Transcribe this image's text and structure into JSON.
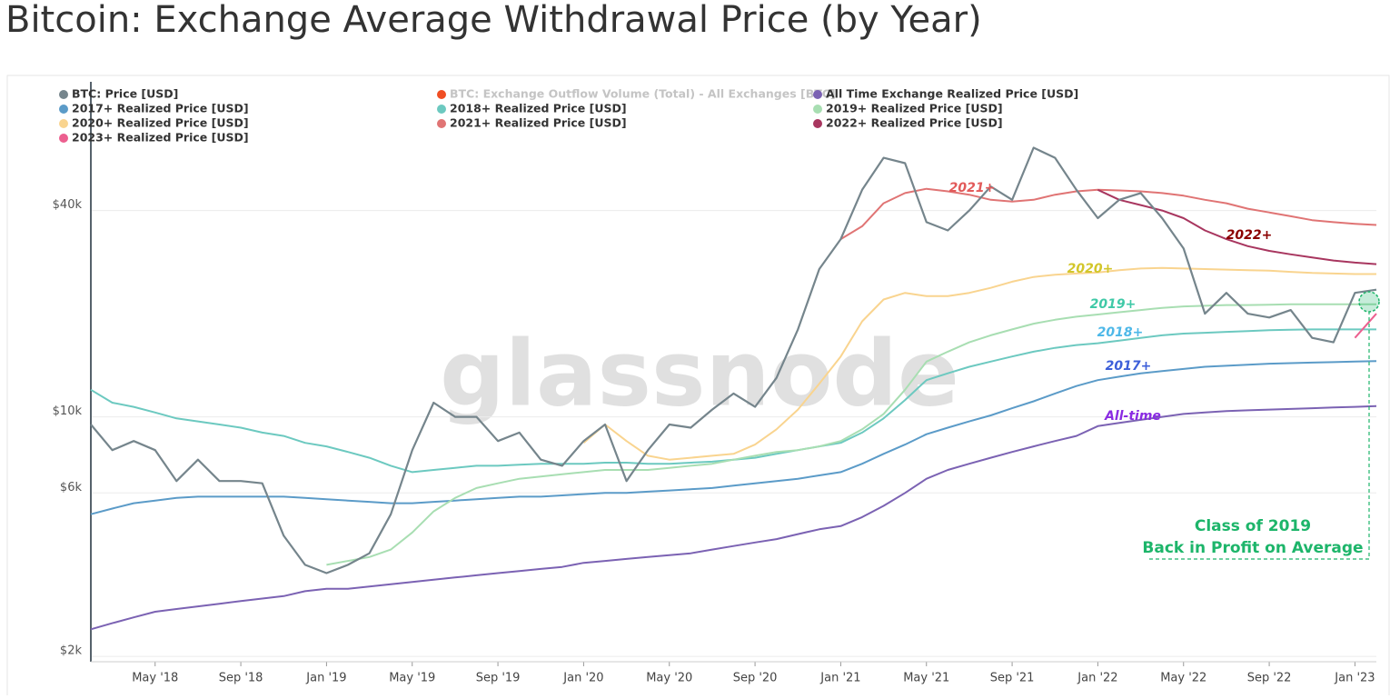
{
  "chart_data": {
    "type": "line",
    "title": "Bitcoin: Exchange Average Withdrawal Price (by Year)",
    "watermark": "glassnode",
    "log_scale": true,
    "grid": true,
    "legend": "top-left",
    "x": [
      "2018-02",
      "2018-03",
      "2018-04",
      "2018-05",
      "2018-06",
      "2018-07",
      "2018-08",
      "2018-09",
      "2018-10",
      "2018-11",
      "2018-12",
      "2019-01",
      "2019-02",
      "2019-03",
      "2019-04",
      "2019-05",
      "2019-06",
      "2019-07",
      "2019-08",
      "2019-09",
      "2019-10",
      "2019-11",
      "2019-12",
      "2020-01",
      "2020-02",
      "2020-03",
      "2020-04",
      "2020-05",
      "2020-06",
      "2020-07",
      "2020-08",
      "2020-09",
      "2020-10",
      "2020-11",
      "2020-12",
      "2021-01",
      "2021-02",
      "2021-03",
      "2021-04",
      "2021-05",
      "2021-06",
      "2021-07",
      "2021-08",
      "2021-09",
      "2021-10",
      "2021-11",
      "2021-12",
      "2022-01",
      "2022-02",
      "2022-03",
      "2022-04",
      "2022-05",
      "2022-06",
      "2022-07",
      "2022-08",
      "2022-09",
      "2022-10",
      "2022-11",
      "2022-12",
      "2023-01",
      "2023-02"
    ],
    "xlim": [
      "2018-02",
      "2023-02"
    ],
    "xticks": [
      {
        "value": "2018-05",
        "label": "May '18"
      },
      {
        "value": "2018-09",
        "label": "Sep '18"
      },
      {
        "value": "2019-01",
        "label": "Jan '19"
      },
      {
        "value": "2019-05",
        "label": "May '19"
      },
      {
        "value": "2019-09",
        "label": "Sep '19"
      },
      {
        "value": "2020-01",
        "label": "Jan '20"
      },
      {
        "value": "2020-05",
        "label": "May '20"
      },
      {
        "value": "2020-09",
        "label": "Sep '20"
      },
      {
        "value": "2021-01",
        "label": "Jan '21"
      },
      {
        "value": "2021-05",
        "label": "May '21"
      },
      {
        "value": "2021-09",
        "label": "Sep '21"
      },
      {
        "value": "2022-01",
        "label": "Jan '22"
      },
      {
        "value": "2022-05",
        "label": "May '22"
      },
      {
        "value": "2022-09",
        "label": "Sep '22"
      },
      {
        "value": "2023-01",
        "label": "Jan '23"
      }
    ],
    "ylim": [
      1930,
      95000
    ],
    "yticks": [
      {
        "value": 2000,
        "label": "$2k"
      },
      {
        "value": 6000,
        "label": "$6k"
      },
      {
        "value": 10000,
        "label": "$10k"
      },
      {
        "value": 40000,
        "label": "$40k"
      }
    ],
    "series": [
      {
        "name": "BTC: Price [USD]",
        "color": "#75858c",
        "values": [
          9500,
          8000,
          8500,
          8000,
          6500,
          7500,
          6500,
          6500,
          6400,
          4500,
          3700,
          3500,
          3700,
          4000,
          5200,
          8000,
          11000,
          10000,
          10000,
          8500,
          9000,
          7500,
          7200,
          8500,
          9500,
          6500,
          8000,
          9500,
          9300,
          10500,
          11700,
          10700,
          13000,
          18000,
          27000,
          33000,
          46000,
          57000,
          55000,
          37000,
          35000,
          40000,
          47000,
          43000,
          61000,
          57000,
          46000,
          38000,
          43000,
          45000,
          38000,
          31000,
          20000,
          23000,
          20000,
          19500,
          20500,
          17000,
          16500,
          23000,
          23500
        ]
      },
      {
        "name": "BTC: Exchange Outflow Volume (Total) - All Exchanges [BTC]",
        "color": "#f04e23",
        "visible": false
      },
      {
        "name": "All Time Exchange Realized Price [USD]",
        "color": "#7b62b3",
        "values": [
          2400,
          2500,
          2600,
          2700,
          2750,
          2800,
          2850,
          2900,
          2950,
          3000,
          3100,
          3150,
          3150,
          3200,
          3250,
          3300,
          3350,
          3400,
          3450,
          3500,
          3550,
          3600,
          3650,
          3750,
          3800,
          3850,
          3900,
          3950,
          4000,
          4100,
          4200,
          4300,
          4400,
          4550,
          4700,
          4800,
          5100,
          5500,
          6000,
          6600,
          7000,
          7300,
          7600,
          7900,
          8200,
          8500,
          8800,
          9400,
          9600,
          9800,
          10000,
          10200,
          10300,
          10400,
          10450,
          10500,
          10550,
          10600,
          10650,
          10700,
          10750
        ]
      },
      {
        "name": "2017+ Realized Price [USD]",
        "color": "#5b9bc8",
        "values": [
          5200,
          5400,
          5600,
          5700,
          5800,
          5850,
          5850,
          5850,
          5850,
          5850,
          5800,
          5750,
          5700,
          5650,
          5600,
          5600,
          5650,
          5700,
          5750,
          5800,
          5850,
          5850,
          5900,
          5950,
          6000,
          6000,
          6050,
          6100,
          6150,
          6200,
          6300,
          6400,
          6500,
          6600,
          6750,
          6900,
          7300,
          7800,
          8300,
          8900,
          9300,
          9700,
          10100,
          10600,
          11100,
          11700,
          12300,
          12800,
          13100,
          13400,
          13600,
          13800,
          14000,
          14100,
          14200,
          14300,
          14350,
          14400,
          14450,
          14500,
          14550
        ]
      },
      {
        "name": "2018+ Realized Price [USD]",
        "color": "#6cc9c0",
        "values": [
          12000,
          11000,
          10700,
          10300,
          9900,
          9700,
          9500,
          9300,
          9000,
          8800,
          8400,
          8200,
          7900,
          7600,
          7200,
          6900,
          7000,
          7100,
          7200,
          7200,
          7250,
          7300,
          7300,
          7300,
          7350,
          7350,
          7300,
          7300,
          7350,
          7400,
          7500,
          7600,
          7800,
          8000,
          8200,
          8400,
          9000,
          9900,
          11200,
          12800,
          13400,
          14000,
          14500,
          15000,
          15500,
          15900,
          16200,
          16400,
          16700,
          17000,
          17300,
          17500,
          17600,
          17700,
          17800,
          17900,
          17950,
          18000,
          18000,
          18000,
          18000
        ]
      },
      {
        "name": "2019+ Realized Price [USD]",
        "color": "#a8deb2",
        "values": [
          null,
          null,
          null,
          null,
          null,
          null,
          null,
          null,
          null,
          null,
          null,
          3700,
          3800,
          3900,
          4100,
          4600,
          5300,
          5800,
          6200,
          6400,
          6600,
          6700,
          6800,
          6900,
          7000,
          7000,
          7000,
          7100,
          7200,
          7300,
          7500,
          7700,
          7900,
          8000,
          8200,
          8500,
          9200,
          10200,
          12000,
          14500,
          15500,
          16500,
          17300,
          18000,
          18700,
          19200,
          19600,
          19900,
          20200,
          20500,
          20800,
          21000,
          21100,
          21200,
          21200,
          21250,
          21300,
          21300,
          21300,
          21300,
          21300
        ]
      },
      {
        "name": "2020+ Realized Price [USD]",
        "color": "#f9d48f",
        "values": [
          null,
          null,
          null,
          null,
          null,
          null,
          null,
          null,
          null,
          null,
          null,
          null,
          null,
          null,
          null,
          null,
          null,
          null,
          null,
          null,
          null,
          null,
          null,
          8400,
          9500,
          8500,
          7700,
          7500,
          7600,
          7700,
          7800,
          8300,
          9200,
          10500,
          12500,
          15000,
          19000,
          22000,
          23000,
          22500,
          22500,
          23000,
          23800,
          24800,
          25600,
          26000,
          26200,
          26400,
          26800,
          27100,
          27200,
          27100,
          27000,
          26900,
          26800,
          26700,
          26500,
          26300,
          26200,
          26100,
          26100
        ]
      },
      {
        "name": "2021+ Realized Price [USD]",
        "color": "#e07474",
        "values": [
          null,
          null,
          null,
          null,
          null,
          null,
          null,
          null,
          null,
          null,
          null,
          null,
          null,
          null,
          null,
          null,
          null,
          null,
          null,
          null,
          null,
          null,
          null,
          null,
          null,
          null,
          null,
          null,
          null,
          null,
          null,
          null,
          null,
          null,
          null,
          33000,
          36000,
          42000,
          45000,
          46300,
          45500,
          44500,
          43000,
          42500,
          43000,
          44500,
          45500,
          46000,
          45800,
          45500,
          45000,
          44200,
          43000,
          42000,
          40500,
          39500,
          38500,
          37500,
          37000,
          36600,
          36300
        ]
      },
      {
        "name": "2022+ Realized Price [USD]",
        "color": "#a8365f",
        "values": [
          null,
          null,
          null,
          null,
          null,
          null,
          null,
          null,
          null,
          null,
          null,
          null,
          null,
          null,
          null,
          null,
          null,
          null,
          null,
          null,
          null,
          null,
          null,
          null,
          null,
          null,
          null,
          null,
          null,
          null,
          null,
          null,
          null,
          null,
          null,
          null,
          null,
          null,
          null,
          null,
          null,
          null,
          null,
          null,
          null,
          null,
          null,
          46000,
          43000,
          41500,
          40000,
          38000,
          35000,
          33000,
          31500,
          30500,
          29800,
          29200,
          28600,
          28200,
          27900
        ]
      },
      {
        "name": "2023+ Realized Price [USD]",
        "color": "#ec5f8f",
        "values": [
          null,
          null,
          null,
          null,
          null,
          null,
          null,
          null,
          null,
          null,
          null,
          null,
          null,
          null,
          null,
          null,
          null,
          null,
          null,
          null,
          null,
          null,
          null,
          null,
          null,
          null,
          null,
          null,
          null,
          null,
          null,
          null,
          null,
          null,
          null,
          null,
          null,
          null,
          null,
          null,
          null,
          null,
          null,
          null,
          null,
          null,
          null,
          null,
          null,
          null,
          null,
          null,
          null,
          null,
          null,
          null,
          null,
          null,
          null,
          17000,
          20000
        ]
      }
    ],
    "annotations": [
      {
        "text": "2021+",
        "color": "#e25a5a"
      },
      {
        "text": "2022+",
        "color": "#8b0000"
      },
      {
        "text": "2020+",
        "color": "#d2c62a"
      },
      {
        "text": "2019+",
        "color": "#3fc9a7"
      },
      {
        "text": "2018+",
        "color": "#4eb8e8"
      },
      {
        "text": "2017+",
        "color": "#3d5fd9"
      },
      {
        "text": "All-time",
        "color": "#8a2be2"
      },
      {
        "text": "Class of 2019",
        "color": "#1db56a"
      },
      {
        "text": "Back in Profit on Average",
        "color": "#1db56a"
      }
    ]
  }
}
